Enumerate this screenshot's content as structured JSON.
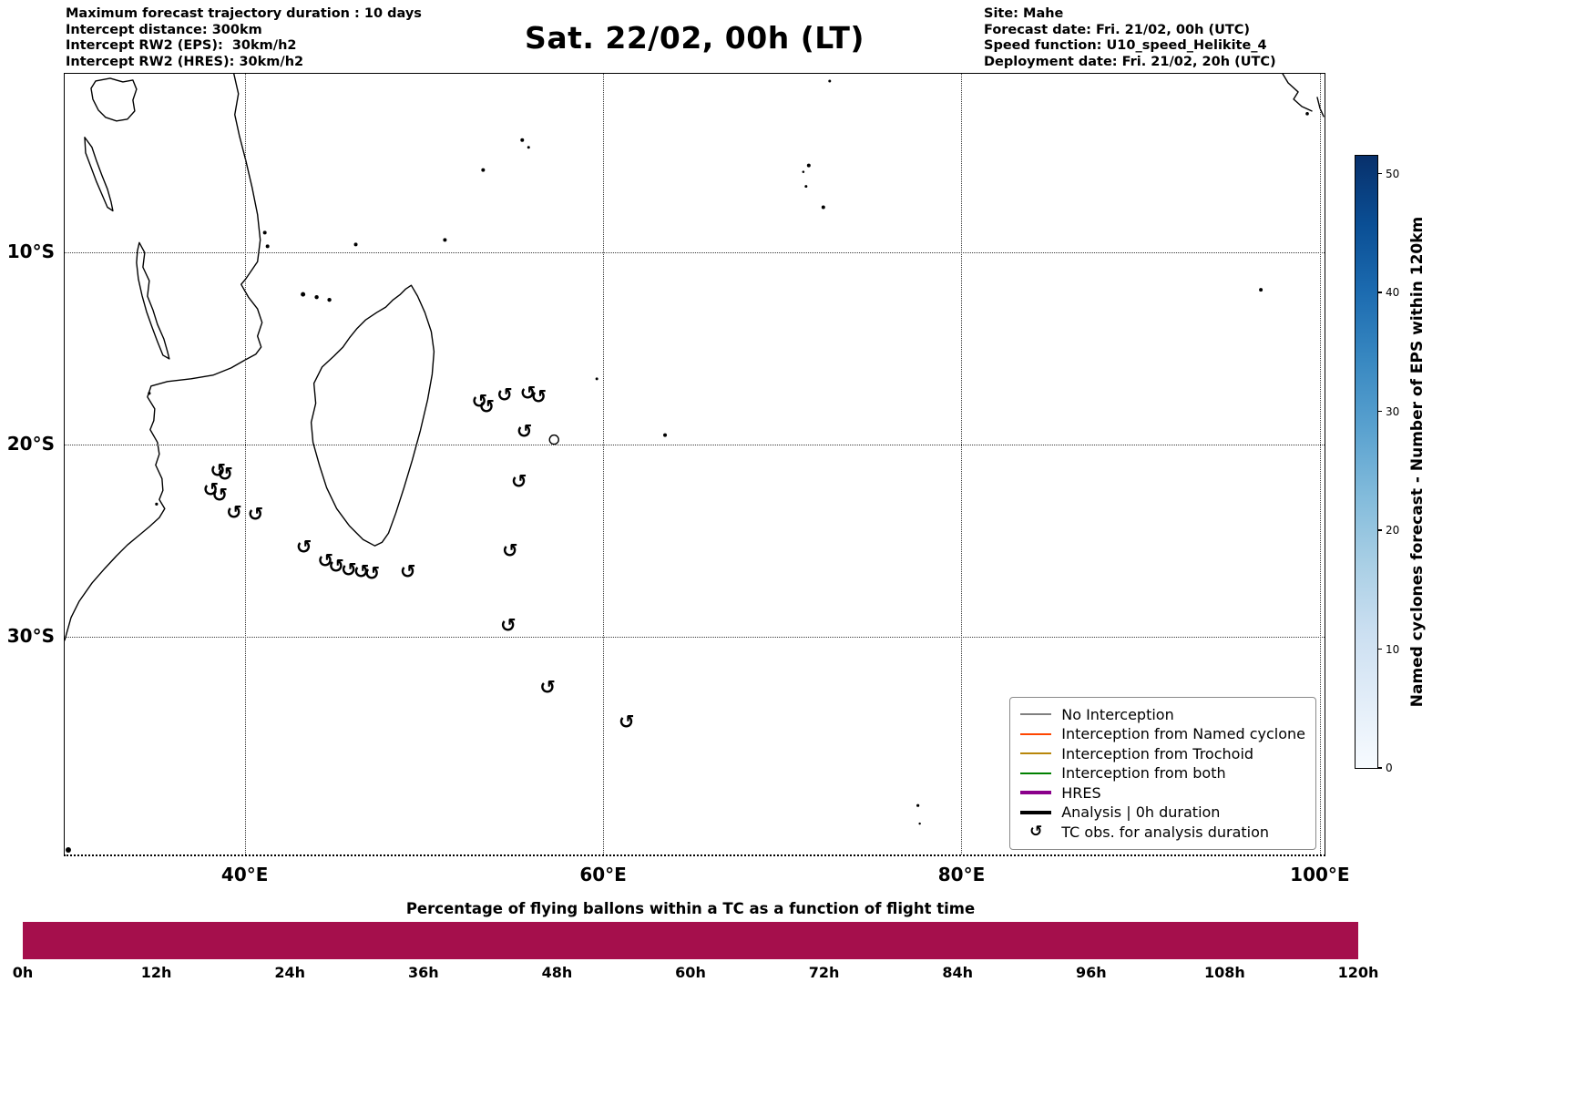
{
  "header": {
    "title": "Sat. 22/02, 00h (LT)",
    "left_lines": [
      "Maximum forecast trajectory duration : 10 days",
      "Intercept distance: 300km",
      "Intercept RW2 (EPS):  30km/h2",
      "Intercept RW2 (HRES): 30km/h2"
    ],
    "right_lines": [
      "Site: Mahe",
      "Forecast date: Fri. 21/02, 00h (UTC)",
      "Speed function: U10_speed_Helikite_4",
      "Deployment date: Fri. 21/02, 20h (UTC)"
    ]
  },
  "map": {
    "lon_range": [
      29.95,
      100.26
    ],
    "lat_range": [
      -41.35,
      -0.69
    ],
    "x_ticks": [
      {
        "lon": 40,
        "label": "40°E"
      },
      {
        "lon": 60,
        "label": "60°E"
      },
      {
        "lon": 80,
        "label": "80°E"
      },
      {
        "lon": 100,
        "label": "100°E"
      }
    ],
    "y_ticks": [
      {
        "lat": -10,
        "label": "10°S"
      },
      {
        "lat": -20,
        "label": "20°S"
      },
      {
        "lat": -30,
        "label": "30°S"
      }
    ],
    "tc_symbol": "↺"
  },
  "legend": {
    "items": [
      {
        "label": "No Interception",
        "color": "#808080",
        "lw": 2
      },
      {
        "label": "Interception from Named cyclone",
        "color": "#ff4500",
        "lw": 2
      },
      {
        "label": "Interception from Trochoid",
        "color": "#b8860b",
        "lw": 2
      },
      {
        "label": "Interception from both",
        "color": "#008000",
        "lw": 2
      },
      {
        "label": "HRES",
        "color": "#8b008b",
        "lw": 4
      },
      {
        "label": "Analysis | 0h duration",
        "color": "#000000",
        "lw": 4
      },
      {
        "label": "TC obs. for analysis duration",
        "icon": "↺"
      }
    ]
  },
  "colorbar": {
    "label": "Named cyclones forecast - Number of EPS within 120km",
    "ticks": [
      0,
      10,
      20,
      30,
      40,
      50
    ],
    "vmax": 51.5,
    "gradient": [
      "#f7fbff",
      "#e2edf8",
      "#cbdff1",
      "#a9cfe5",
      "#82bbdb",
      "#59a1cf",
      "#3888c1",
      "#1c6bb0",
      "#0a4e94",
      "#08306b"
    ]
  },
  "bottom_chart": {
    "title": "Percentage of flying ballons within a TC as a function of flight time",
    "x_ticks": [
      "0h",
      "12h",
      "24h",
      "36h",
      "48h",
      "60h",
      "72h",
      "84h",
      "96h",
      "108h",
      "120h"
    ],
    "bar_color": "#a50f4c"
  },
  "chart_data": [
    {
      "type": "scatter",
      "name": "tc-observations-map",
      "title": "Sat. 22/02, 00h (LT)",
      "marker_glyph": "↺",
      "x_tick_labels": [
        "40°E",
        "60°E",
        "80°E",
        "100°E"
      ],
      "y_tick_labels": [
        "10°S",
        "20°S",
        "30°S"
      ],
      "xlim_lon": [
        29.95,
        100.26
      ],
      "ylim_lat": [
        -41.35,
        -0.69
      ],
      "grid": "dotted",
      "legend_position": "lower right",
      "points_lon_lat": [
        [
          53.1,
          -17.8
        ],
        [
          53.5,
          -18.1
        ],
        [
          54.5,
          -17.5
        ],
        [
          55.8,
          -17.4
        ],
        [
          56.4,
          -17.6
        ],
        [
          55.6,
          -19.4
        ],
        [
          55.3,
          -22.0
        ],
        [
          54.8,
          -25.6
        ],
        [
          54.7,
          -29.5
        ],
        [
          56.9,
          -32.7
        ],
        [
          61.3,
          -34.5
        ],
        [
          38.5,
          -21.4
        ],
        [
          38.9,
          -21.6
        ],
        [
          38.1,
          -22.4
        ],
        [
          38.6,
          -22.7
        ],
        [
          39.4,
          -23.6
        ],
        [
          40.6,
          -23.7
        ],
        [
          43.3,
          -25.4
        ],
        [
          44.5,
          -26.1
        ],
        [
          45.1,
          -26.4
        ],
        [
          45.8,
          -26.6
        ],
        [
          46.5,
          -26.7
        ],
        [
          47.1,
          -26.8
        ],
        [
          49.1,
          -26.7
        ]
      ],
      "colorbar_label": "Named cyclones forecast - Number of EPS within 120km",
      "colorbar_ticks": [
        0,
        10,
        20,
        30,
        40,
        50
      ]
    },
    {
      "type": "bar",
      "name": "balloon-tc-percentage",
      "title": "Percentage of flying ballons within a TC as a function of flight time",
      "x_tick_labels": [
        "0h",
        "12h",
        "24h",
        "36h",
        "48h",
        "60h",
        "72h",
        "84h",
        "96h",
        "108h",
        "120h"
      ],
      "x_range_hours": [
        0,
        120
      ],
      "bar": {
        "start_hour": 0,
        "end_hour": 120,
        "filled": true,
        "color": "#a50f4c"
      }
    }
  ]
}
